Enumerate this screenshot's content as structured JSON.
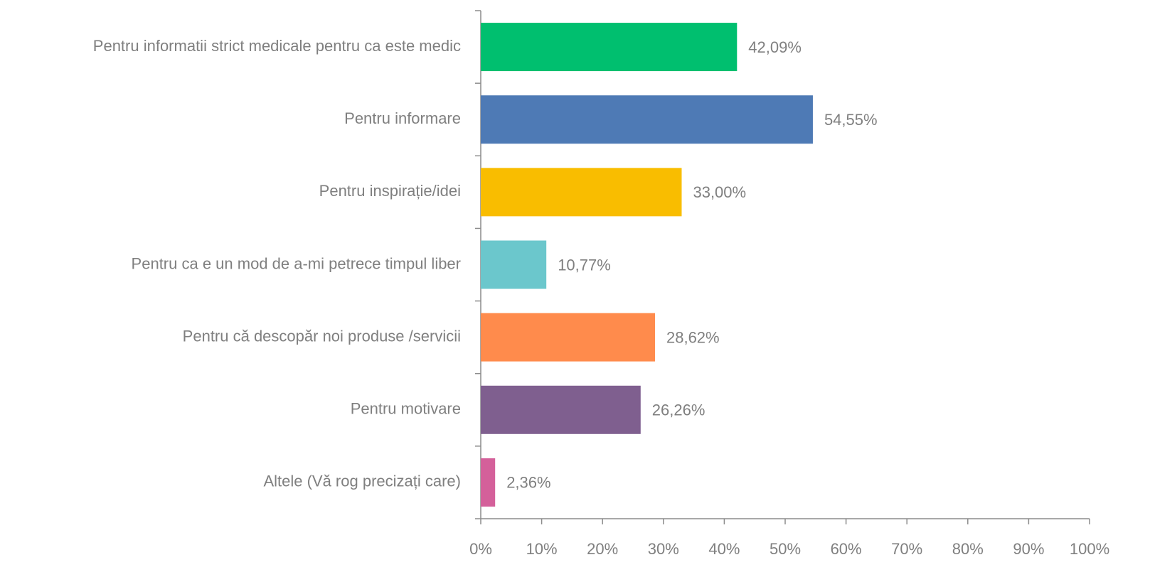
{
  "chart_data": {
    "type": "barh",
    "categories": [
      "Pentru informatii strict medicale pentru ca este medic",
      "Pentru informare",
      "Pentru inspirație/idei",
      "Pentru ca e un mod de a-mi petrece timpul liber",
      "Pentru că descopăr noi produse /servicii",
      "Pentru motivare",
      "Altele (Vă rog precizați care)"
    ],
    "values": [
      42.09,
      54.55,
      33.0,
      10.77,
      28.62,
      26.26,
      2.36
    ],
    "value_labels": [
      "42,09%",
      "54,55%",
      "33,00%",
      "10,77%",
      "28,62%",
      "26,26%",
      "2,36%"
    ],
    "colors": [
      "#00bf6f",
      "#4e7ab5",
      "#f9bd00",
      "#6bc7cc",
      "#ff8b4c",
      "#7f5f8f",
      "#d4609a"
    ],
    "xlim": [
      0,
      100
    ],
    "xticks": [
      {
        "value": 0,
        "label": "0%"
      },
      {
        "value": 10,
        "label": "10%"
      },
      {
        "value": 20,
        "label": "20%"
      },
      {
        "value": 30,
        "label": "30%"
      },
      {
        "value": 40,
        "label": "40%"
      },
      {
        "value": 50,
        "label": "50%"
      },
      {
        "value": 60,
        "label": "60%"
      },
      {
        "value": 70,
        "label": "70%"
      },
      {
        "value": 80,
        "label": "80%"
      },
      {
        "value": 90,
        "label": "90%"
      },
      {
        "value": 100,
        "label": "100%"
      }
    ]
  }
}
